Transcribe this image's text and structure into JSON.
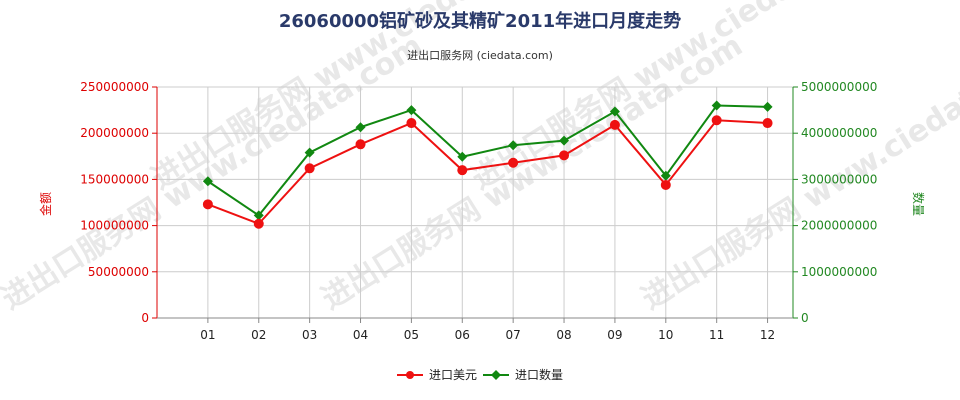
{
  "chart_data": {
    "type": "line",
    "title": "26060000铝矿砂及其精矿2011年进口月度走势",
    "subtitle": "进出口服务网 (ciedata.com)",
    "watermark": "进出口服务网 www.ciedata.com",
    "categories": [
      "01",
      "02",
      "03",
      "04",
      "05",
      "06",
      "07",
      "08",
      "09",
      "10",
      "11",
      "12"
    ],
    "y_left": {
      "label": "金额",
      "range": [
        0,
        250000000
      ],
      "ticks": [
        "0",
        "50000000",
        "100000000",
        "150000000",
        "200000000",
        "250000000"
      ],
      "color": "#dd0000"
    },
    "y_right": {
      "label": "数量",
      "range": [
        0,
        5000000000
      ],
      "ticks": [
        "0",
        "1000000000",
        "2000000000",
        "3000000000",
        "4000000000",
        "5000000000"
      ],
      "color": "#228822"
    },
    "grid": true,
    "legend_position": "bottom",
    "series": [
      {
        "name": "进口美元",
        "axis": "left",
        "color": "#ee1111",
        "marker": "circle",
        "values": [
          123000000,
          102000000,
          162000000,
          188000000,
          211000000,
          160000000,
          168000000,
          176000000,
          209000000,
          144000000,
          214000000,
          211000000
        ]
      },
      {
        "name": "进口数量",
        "axis": "right",
        "color": "#118811",
        "marker": "diamond",
        "values": [
          2960000000,
          2220000000,
          3580000000,
          4130000000,
          4500000000,
          3490000000,
          3740000000,
          3840000000,
          4470000000,
          3080000000,
          4600000000,
          4570000000
        ]
      }
    ]
  }
}
